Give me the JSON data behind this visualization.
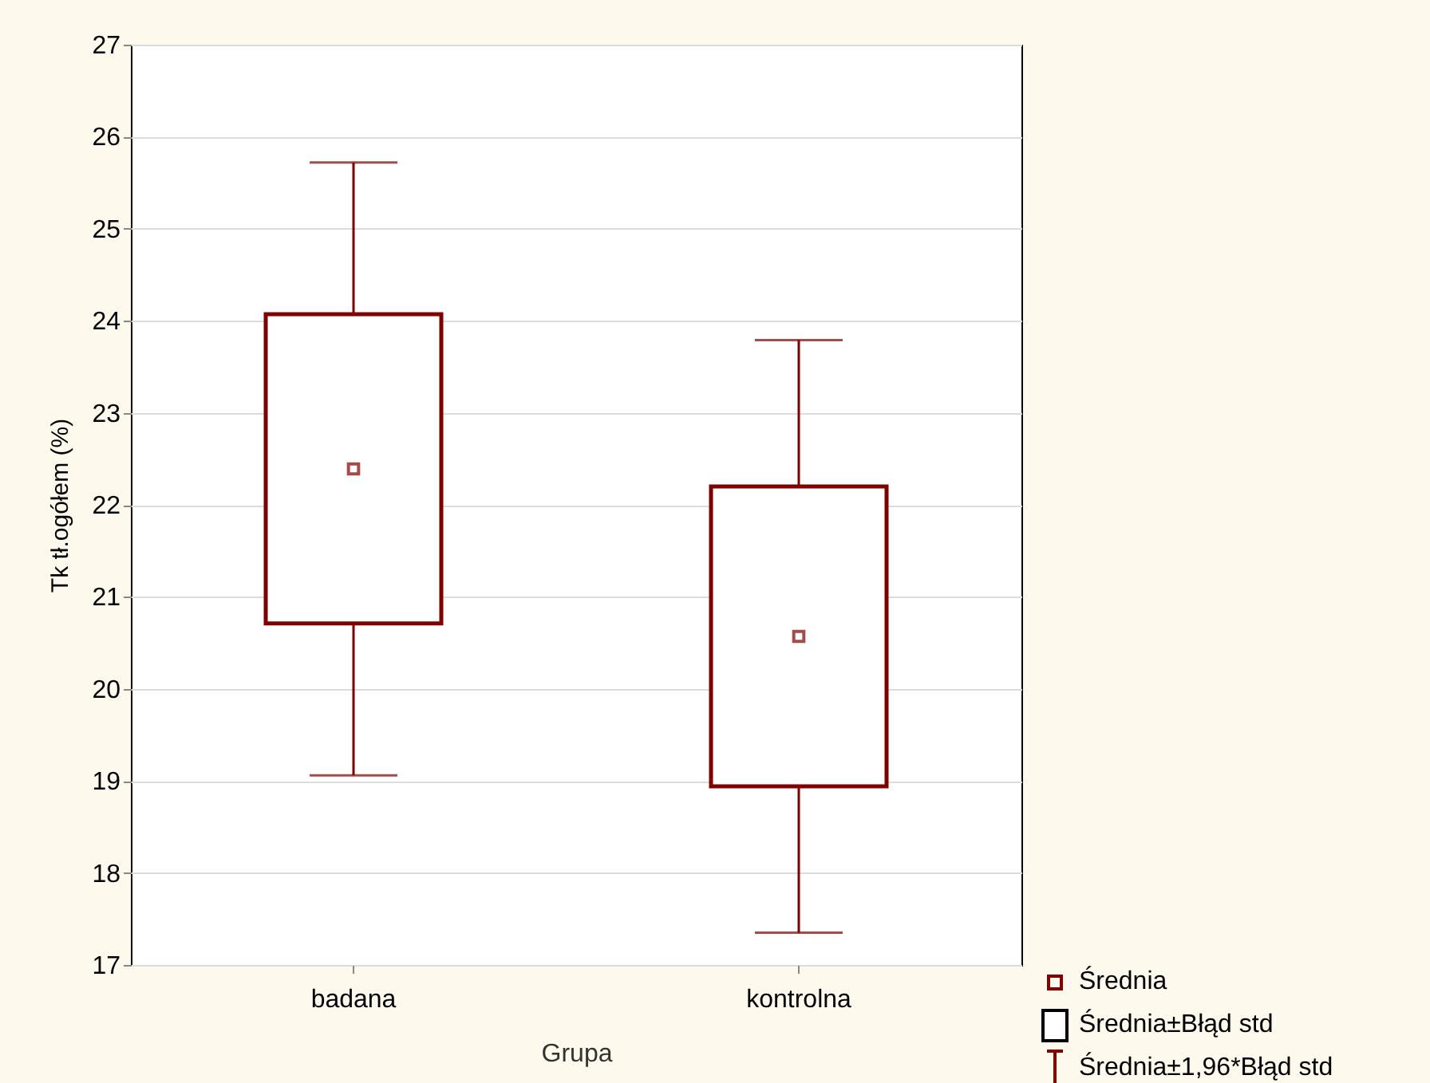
{
  "chart_data": {
    "type": "box",
    "xlabel": "Grupa",
    "ylabel": "Tk tł.ogółem (%)",
    "categories": [
      "badana",
      "kontrolna"
    ],
    "boxes": [
      {
        "low": 19.06,
        "q1": 20.71,
        "q3": 24.07,
        "high": 25.72,
        "mean": 22.39
      },
      {
        "low": 17.35,
        "q1": 18.94,
        "q3": 22.2,
        "high": 23.79,
        "mean": 20.57
      }
    ],
    "color": "#800000",
    "marker": "square",
    "ylim": [
      17,
      27
    ],
    "yticks": [
      17,
      18,
      19,
      20,
      21,
      22,
      23,
      24,
      25,
      26,
      27
    ],
    "grid": "y",
    "annotations": [
      "Średnia",
      "Średnia±Błąd std",
      "Średnia±1,96*Błąd std"
    ]
  }
}
